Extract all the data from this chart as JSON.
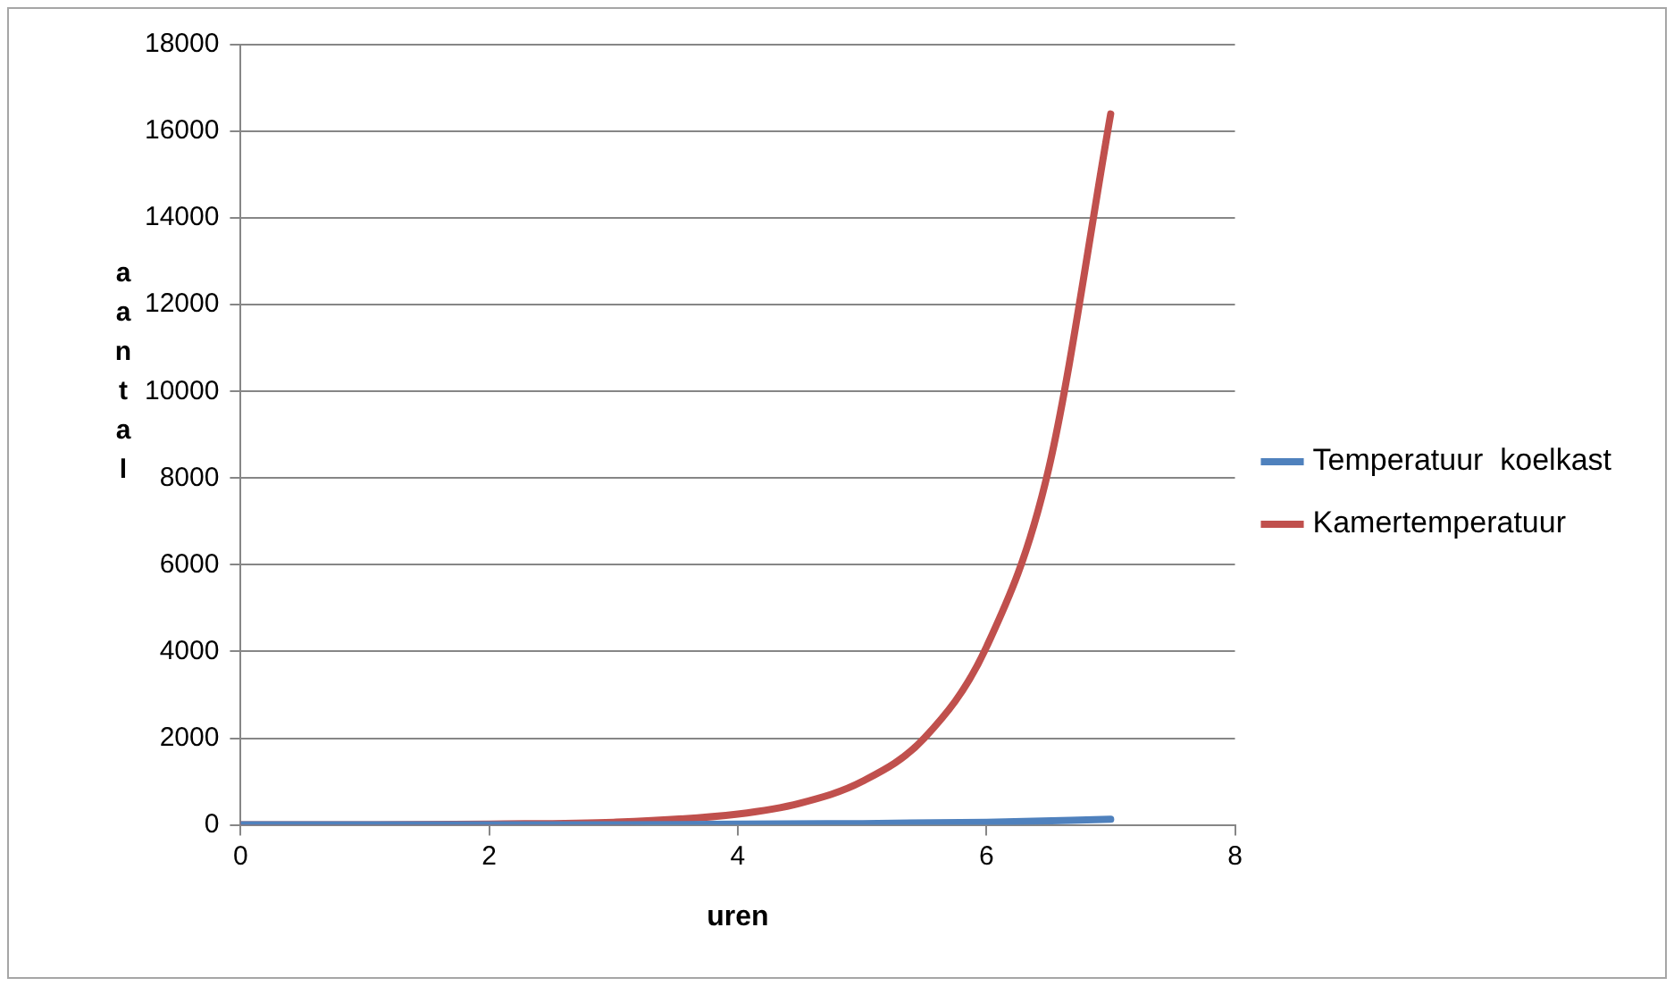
{
  "chart_data": {
    "type": "line",
    "xlabel": "uren",
    "ylabel": "aantal",
    "xlim": [
      0,
      8
    ],
    "xticks": [
      0,
      2,
      4,
      6,
      8
    ],
    "ylim": [
      0,
      18000
    ],
    "yticks": [
      0,
      2000,
      4000,
      6000,
      8000,
      10000,
      12000,
      14000,
      16000,
      18000
    ],
    "grid": "y",
    "legend": "right",
    "marker": "none",
    "line_style": "solid",
    "series": [
      {
        "name": "Temperatuur  koelkast",
        "color": "#4f81bd",
        "x": [
          0,
          1,
          2,
          3,
          4,
          5,
          6,
          7
        ],
        "values": [
          0,
          0,
          0,
          0,
          20,
          30,
          60,
          130
        ]
      },
      {
        "name": "Kamertemperatuur",
        "color": "#c0504d",
        "x": [
          0,
          1,
          2,
          3,
          4,
          4.5,
          5,
          5.5,
          6,
          6.5,
          7
        ],
        "values": [
          0,
          0,
          20,
          60,
          250,
          500,
          1000,
          2000,
          4100,
          8200,
          16400
        ]
      }
    ]
  }
}
